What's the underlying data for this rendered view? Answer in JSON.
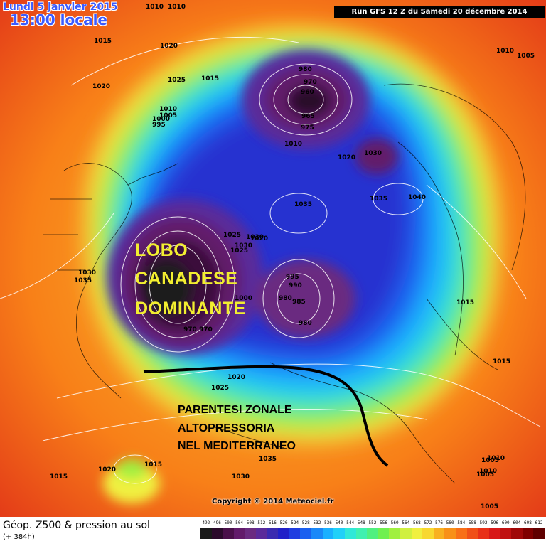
{
  "header": {
    "date": "Lundi 5 janvier 2015",
    "time": "13:00 locale",
    "run": "Run GFS 12 Z du Samedi 20 décembre 2014"
  },
  "annotations": {
    "lobe_line1": "LOBO",
    "lobe_line2": "CANADESE",
    "lobe_line3": "DOMINANTE",
    "med_line1": "PARENTESI ZONALE",
    "med_line2": "ALTOPRESSORIA",
    "med_line3": "NEL MEDITERRANEO"
  },
  "copyright": "Copyright © 2014 Meteociel.fr",
  "footer": {
    "title": "Géop. Z500 & pression au sol",
    "subtitle": "(+ 384h)"
  },
  "scale": [
    {
      "label": "492",
      "color": "#1a1a1a"
    },
    {
      "label": "496",
      "color": "#2b0a2b"
    },
    {
      "label": "500",
      "color": "#4a0f4a"
    },
    {
      "label": "504",
      "color": "#621a6a"
    },
    {
      "label": "508",
      "color": "#6a2a80"
    },
    {
      "label": "512",
      "color": "#5a2a9a"
    },
    {
      "label": "516",
      "color": "#3a2ab0"
    },
    {
      "label": "520",
      "color": "#2020c8"
    },
    {
      "label": "524",
      "color": "#1f3de0"
    },
    {
      "label": "528",
      "color": "#1a60f0"
    },
    {
      "label": "532",
      "color": "#1a88f8"
    },
    {
      "label": "536",
      "color": "#1ab0ff"
    },
    {
      "label": "540",
      "color": "#20d0f8"
    },
    {
      "label": "544",
      "color": "#30e8d8"
    },
    {
      "label": "548",
      "color": "#40f0b0"
    },
    {
      "label": "552",
      "color": "#50f080"
    },
    {
      "label": "556",
      "color": "#70f050"
    },
    {
      "label": "560",
      "color": "#a0f040"
    },
    {
      "label": "564",
      "color": "#d0f040"
    },
    {
      "label": "568",
      "color": "#f0f040"
    },
    {
      "label": "572",
      "color": "#f8d830"
    },
    {
      "label": "576",
      "color": "#f8b020"
    },
    {
      "label": "580",
      "color": "#f89018"
    },
    {
      "label": "584",
      "color": "#f87018"
    },
    {
      "label": "588",
      "color": "#f05018"
    },
    {
      "label": "592",
      "color": "#e83018"
    },
    {
      "label": "596",
      "color": "#d81818"
    },
    {
      "label": "600",
      "color": "#c01010"
    },
    {
      "label": "604",
      "color": "#a00808"
    },
    {
      "label": "608",
      "color": "#800000"
    },
    {
      "label": "612",
      "color": "#600000"
    }
  ],
  "pressure_labels": [
    {
      "value": "1010"
    },
    {
      "value": "1015"
    },
    {
      "value": "1020"
    },
    {
      "value": "1020"
    },
    {
      "value": "1025"
    },
    {
      "value": "1015"
    },
    {
      "value": "1010"
    },
    {
      "value": "1005"
    },
    {
      "value": "1000"
    },
    {
      "value": "995"
    },
    {
      "value": "980"
    },
    {
      "value": "970"
    },
    {
      "value": "960"
    },
    {
      "value": "965"
    },
    {
      "value": "975"
    },
    {
      "value": "1010"
    },
    {
      "value": "1020"
    },
    {
      "value": "1030"
    },
    {
      "value": "1035"
    },
    {
      "value": "1040"
    },
    {
      "value": "1035"
    },
    {
      "value": "1030"
    },
    {
      "value": "1025"
    },
    {
      "value": "1030"
    },
    {
      "value": "1025"
    },
    {
      "value": "1020"
    },
    {
      "value": "1030"
    },
    {
      "value": "1035"
    },
    {
      "value": "1015"
    },
    {
      "value": "1010"
    },
    {
      "value": "1005"
    },
    {
      "value": "995"
    },
    {
      "value": "990"
    },
    {
      "value": "980"
    },
    {
      "value": "985"
    },
    {
      "value": "980"
    },
    {
      "value": "1000"
    },
    {
      "value": "970"
    },
    {
      "value": "970"
    },
    {
      "value": "1020"
    },
    {
      "value": "1025"
    },
    {
      "value": "1015"
    },
    {
      "value": "1020"
    },
    {
      "value": "1015"
    },
    {
      "value": "1030"
    },
    {
      "value": "1035"
    },
    {
      "value": "1015"
    },
    {
      "value": "1005"
    },
    {
      "value": "1010"
    },
    {
      "value": "1010"
    },
    {
      "value": "1005"
    },
    {
      "value": "1010"
    },
    {
      "value": "1005"
    }
  ]
}
